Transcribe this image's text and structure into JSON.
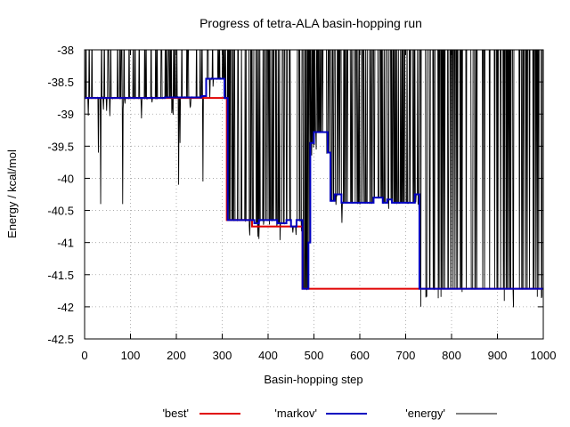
{
  "chart_data": {
    "type": "line",
    "title": "Progress of tetra-ALA basin-hopping run",
    "xlabel": "Basin-hopping step",
    "ylabel": "Energy / kcal/mol",
    "xlim": [
      0,
      1000
    ],
    "ylim": [
      -42.5,
      -38
    ],
    "x_ticks": [
      0,
      100,
      200,
      300,
      400,
      500,
      600,
      700,
      800,
      900,
      1000
    ],
    "y_ticks": [
      -42.5,
      -42,
      -41.5,
      -41,
      -40.5,
      -40,
      -39.5,
      -39,
      -38.5,
      -38
    ],
    "grid": true,
    "legend_position": "bottom",
    "series": [
      {
        "name": "'best'",
        "color": "#e00000",
        "points": [
          [
            0,
            -38.75
          ],
          [
            310,
            -38.75
          ],
          [
            310,
            -40.65
          ],
          [
            365,
            -40.65
          ],
          [
            365,
            -40.75
          ],
          [
            475,
            -40.75
          ],
          [
            475,
            -41.72
          ],
          [
            1000,
            -41.72
          ]
        ]
      },
      {
        "name": "'markov'",
        "color": "#0000c0",
        "points": [
          [
            0,
            -38.75
          ],
          [
            175,
            -38.75
          ],
          [
            175,
            -38.74
          ],
          [
            255,
            -38.74
          ],
          [
            255,
            -38.72
          ],
          [
            265,
            -38.72
          ],
          [
            265,
            -38.45
          ],
          [
            305,
            -38.45
          ],
          [
            305,
            -38.75
          ],
          [
            312,
            -38.75
          ],
          [
            312,
            -40.65
          ],
          [
            370,
            -40.65
          ],
          [
            370,
            -40.7
          ],
          [
            380,
            -40.7
          ],
          [
            380,
            -40.65
          ],
          [
            420,
            -40.65
          ],
          [
            420,
            -40.7
          ],
          [
            440,
            -40.7
          ],
          [
            440,
            -40.65
          ],
          [
            450,
            -40.65
          ],
          [
            450,
            -40.75
          ],
          [
            462,
            -40.75
          ],
          [
            462,
            -40.65
          ],
          [
            475,
            -40.65
          ],
          [
            475,
            -41.72
          ],
          [
            488,
            -41.72
          ],
          [
            488,
            -41.0
          ],
          [
            492,
            -41.0
          ],
          [
            492,
            -39.45
          ],
          [
            500,
            -39.45
          ],
          [
            500,
            -39.28
          ],
          [
            530,
            -39.28
          ],
          [
            530,
            -39.6
          ],
          [
            536,
            -39.6
          ],
          [
            536,
            -40.35
          ],
          [
            545,
            -40.35
          ],
          [
            545,
            -40.25
          ],
          [
            560,
            -40.25
          ],
          [
            560,
            -40.38
          ],
          [
            630,
            -40.38
          ],
          [
            630,
            -40.3
          ],
          [
            650,
            -40.3
          ],
          [
            650,
            -40.38
          ],
          [
            660,
            -40.38
          ],
          [
            660,
            -40.33
          ],
          [
            670,
            -40.33
          ],
          [
            670,
            -40.38
          ],
          [
            720,
            -40.38
          ],
          [
            720,
            -40.25
          ],
          [
            730,
            -40.25
          ],
          [
            730,
            -41.72
          ],
          [
            1000,
            -41.72
          ]
        ]
      },
      {
        "name": "'energy'",
        "color": "#000000",
        "points": []
      }
    ]
  }
}
